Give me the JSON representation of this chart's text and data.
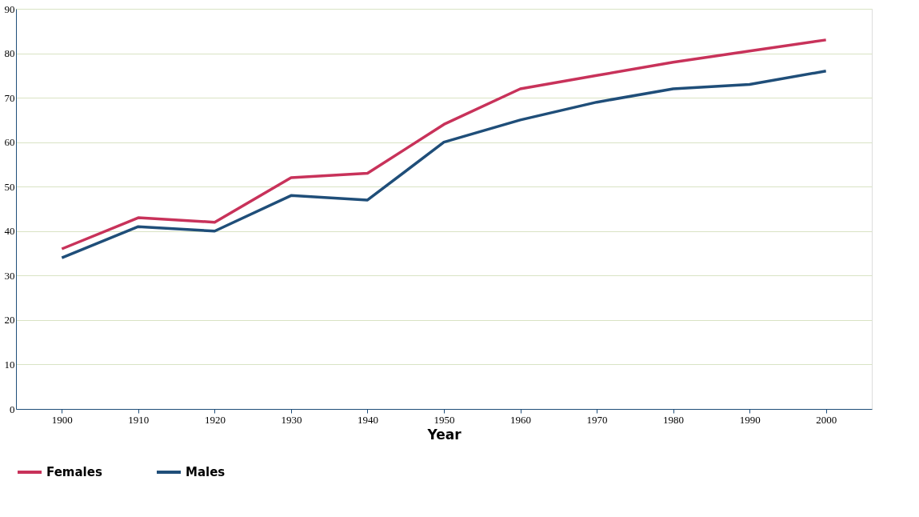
{
  "chart_data": {
    "type": "line",
    "xlabel": "Year",
    "categories": [
      "1900",
      "1910",
      "1920",
      "1930",
      "1940",
      "1950",
      "1960",
      "1970",
      "1980",
      "1990",
      "2000"
    ],
    "series": [
      {
        "name": "Females",
        "color": "#c8325a",
        "values": [
          36,
          43,
          42,
          52,
          53,
          64,
          72,
          75,
          78,
          80.5,
          83
        ]
      },
      {
        "name": "Males",
        "color": "#1f4e79",
        "values": [
          34,
          41,
          40,
          48,
          47,
          60,
          65,
          69,
          72,
          73,
          76
        ]
      }
    ],
    "ylim": [
      0,
      90
    ],
    "yticks": [
      0,
      10,
      20,
      30,
      40,
      50,
      60,
      70,
      80,
      90
    ],
    "grid": "y",
    "legend": "bottom left",
    "marker": "none",
    "line_style": "solid"
  }
}
